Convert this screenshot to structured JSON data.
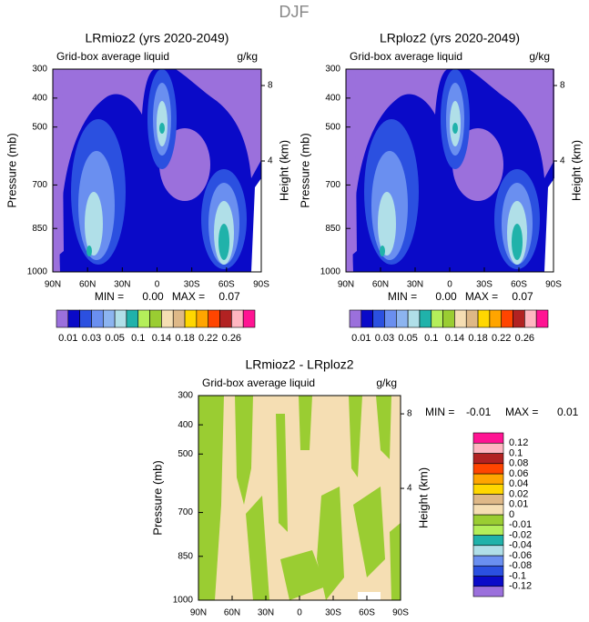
{
  "title": "DJF",
  "chart_data": [
    {
      "type": "contour",
      "title": "LRmioz2 (yrs 2020-2049)",
      "subtitle": "Grid-box average liquid",
      "units": "g/kg",
      "ylabel": "Pressure (mb)",
      "y2label": "Height (km)",
      "ylim": [
        1000,
        300
      ],
      "yticks": [
        300,
        400,
        500,
        700,
        850,
        1000
      ],
      "y2lim": [
        -1.88,
        8.87
      ],
      "y2ticks": [
        4,
        8
      ],
      "xlim": [
        90,
        -90
      ],
      "xticks": [
        {
          "value": 90,
          "label": "90N"
        },
        {
          "value": 60,
          "label": "60N"
        },
        {
          "value": 30,
          "label": "30N"
        },
        0,
        {
          "value": -30,
          "label": "30S"
        },
        {
          "value": -60,
          "label": "60S"
        },
        {
          "value": -90,
          "label": "90S"
        }
      ],
      "min_text": "MIN =",
      "min": {
        "value": 0,
        "label": "0.00"
      },
      "max_text": "MAX =",
      "max": {
        "value": 0.07,
        "label": "0.07"
      },
      "colorbar": "horizontal",
      "level_label_stride": 2,
      "levels": [
        0.01,
        0.02,
        0.03,
        0.04,
        0.05,
        0.08,
        0.1,
        0.12,
        0.14,
        0.16,
        0.18,
        0.2,
        0.22,
        0.24,
        0.26
      ],
      "colors": [
        "#9b70dc",
        "#0a0ac8",
        "#2b50e0",
        "#6a8ff0",
        "#8cb4f0",
        "#b0dfe8",
        "#20b2aa",
        "#b4ee5a",
        "#9acd32",
        "#f5deb3",
        "#deb887",
        "#ffd700",
        "#ffa500",
        "#ff4500",
        "#b22222",
        "#ffb6c1",
        "#ff1493"
      ]
    },
    {
      "type": "contour",
      "title": "LRploz2 (yrs 2020-2049)",
      "subtitle": "Grid-box average liquid",
      "units": "g/kg",
      "ylabel": "Pressure (mb)",
      "y2label": "Height (km)",
      "ylim": [
        1000,
        300
      ],
      "yticks": [
        300,
        400,
        500,
        700,
        850,
        1000
      ],
      "y2lim": [
        -1.88,
        8.87
      ],
      "y2ticks": [
        4,
        8
      ],
      "xlim": [
        90,
        -90
      ],
      "xticks": [
        {
          "value": 90,
          "label": "90N"
        },
        {
          "value": 60,
          "label": "60N"
        },
        {
          "value": 30,
          "label": "30N"
        },
        0,
        {
          "value": -30,
          "label": "30S"
        },
        {
          "value": -60,
          "label": "60S"
        },
        {
          "value": -90,
          "label": "90S"
        }
      ],
      "min_text": "MIN =",
      "min": {
        "value": 0,
        "label": "0.00"
      },
      "max_text": "MAX =",
      "max": {
        "value": 0.07,
        "label": "0.07"
      },
      "colorbar": "horizontal",
      "level_label_stride": 2,
      "levels": [
        0.01,
        0.02,
        0.03,
        0.04,
        0.05,
        0.08,
        0.1,
        0.12,
        0.14,
        0.16,
        0.18,
        0.2,
        0.22,
        0.24,
        0.26
      ],
      "colors": [
        "#9b70dc",
        "#0a0ac8",
        "#2b50e0",
        "#6a8ff0",
        "#8cb4f0",
        "#b0dfe8",
        "#20b2aa",
        "#b4ee5a",
        "#9acd32",
        "#f5deb3",
        "#deb887",
        "#ffd700",
        "#ffa500",
        "#ff4500",
        "#b22222",
        "#ffb6c1",
        "#ff1493"
      ]
    },
    {
      "type": "contour",
      "title": "LRmioz2 - LRploz2",
      "subtitle": "Grid-box average liquid",
      "units": "g/kg",
      "ylabel": "Pressure (mb)",
      "y2label": "Height (km)",
      "ylim": [
        1000,
        300
      ],
      "yticks": [
        300,
        400,
        500,
        700,
        850,
        1000
      ],
      "y2lim": [
        -2.0,
        8.98
      ],
      "y2ticks": [
        4,
        8
      ],
      "xlim": [
        90,
        -90
      ],
      "xticks": [
        {
          "value": 90,
          "label": "90N"
        },
        {
          "value": 60,
          "label": "60N"
        },
        {
          "value": 30,
          "label": "30N"
        },
        0,
        {
          "value": -30,
          "label": "30S"
        },
        {
          "value": -60,
          "label": "60S"
        },
        {
          "value": -90,
          "label": "90S"
        }
      ],
      "min_text": "MIN =",
      "min": {
        "value": -0.01,
        "label": "-0.01"
      },
      "max_text": "MAX =",
      "max": {
        "value": 0.01,
        "label": "0.01"
      },
      "colorbar": "vertical",
      "level_label_stride": 1,
      "levels": [
        -0.12,
        -0.1,
        -0.08,
        -0.06,
        -0.04,
        -0.02,
        -0.01,
        0,
        0.01,
        0.02,
        0.04,
        0.06,
        0.08,
        0.1,
        0.12
      ],
      "colors": [
        "#9b70dc",
        "#0a0ac8",
        "#2b50e0",
        "#6a8ff0",
        "#b0dfe8",
        "#20b2aa",
        "#b4ee5a",
        "#9acd32",
        "#f5deb3",
        "#deb887",
        "#ffd700",
        "#ffa500",
        "#ff4500",
        "#b22222",
        "#ffb6c1",
        "#ff1493"
      ]
    }
  ]
}
